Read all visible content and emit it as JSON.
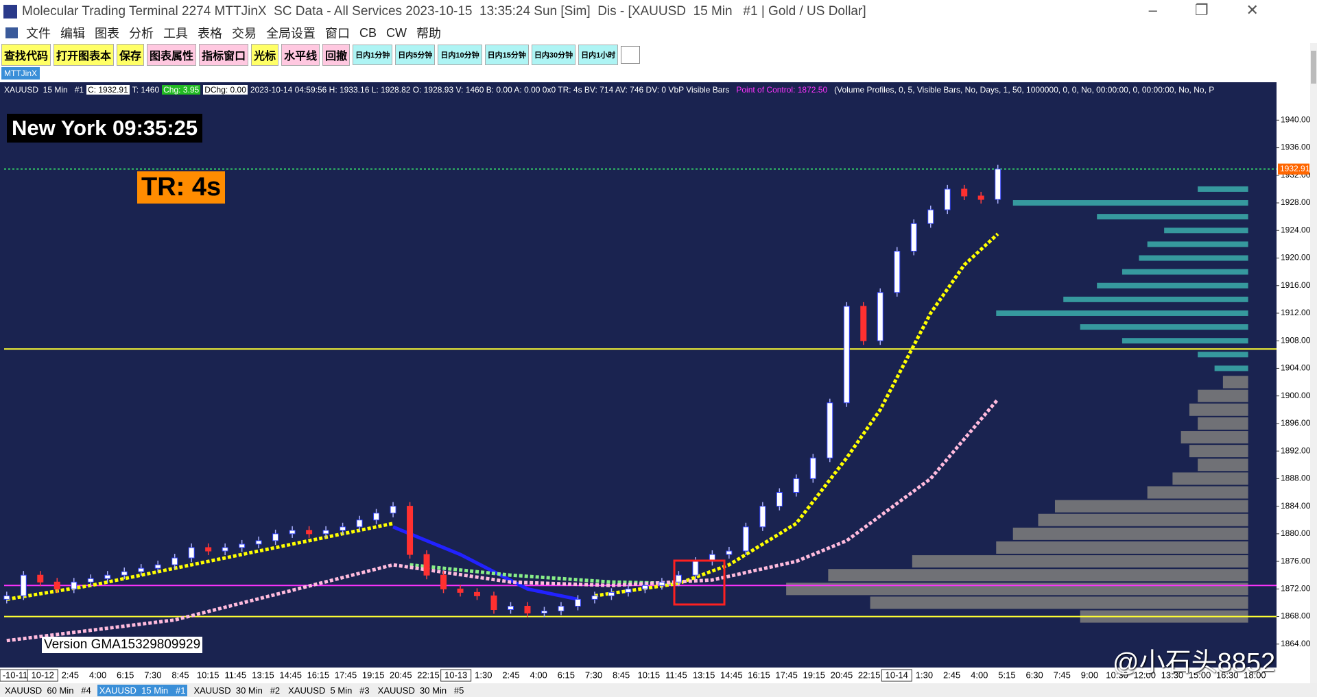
{
  "window": {
    "title": "Molecular Trading Terminal 2274 MTTJinX  SC Data - All Services 2023-10-15  13:35:24 Sun [Sim]  Dis - [XAUUSD  15 Min   #1 | Gold / US Dollar]"
  },
  "menu": [
    "文件",
    "编辑",
    "图表",
    "分析",
    "工具",
    "表格",
    "交易",
    "全局设置",
    "窗口",
    "CB",
    "CW",
    "帮助"
  ],
  "toolbar": [
    "查找代码",
    "打开图表本",
    "保存",
    "图表属性",
    "指标窗口",
    "光标",
    "水平线",
    "回撤",
    "日内1分钟",
    "日内5分钟",
    "日内10分钟",
    "日内15分钟",
    "日内30分钟",
    "日内1小时"
  ],
  "chartbook_tab": "MTTJinX",
  "info": {
    "symbol": "XAUUSD  15 Min   #1",
    "close": "C: 1932.91",
    "trades": "T: 1460",
    "change": "Chg: 3.95",
    "dchange": "DChg: 0.00",
    "details": "2023-10-14 04:59:56 H: 1933.16 L: 1928.82 O: 1928.93 V: 1460 B: 0.00 A: 0.00 0x0 TR: 4s BV: 714 AV: 746 DV: 0 VbP Visible Bars",
    "poc": "Point of Control: 1872.50",
    "study": "(Volume Profiles, 0, 5, Visible Bars, No, Days, 1, 50, 1000000, 0, 0, No, 00:00:00, 0, 00:00:00, No, No, P"
  },
  "overlays": {
    "clock": "New York 09:35:25",
    "timer": "TR: 4s",
    "version": "Version GMA15329809929"
  },
  "chart_data": {
    "type": "candlestick",
    "closes": [
      1871,
      1874,
      1873,
      1872,
      1873,
      1873.5,
      1874,
      1874.5,
      1875,
      1875.5,
      1876.5,
      1878,
      1877.5,
      1878,
      1878.5,
      1879,
      1880,
      1880.5,
      1880,
      1880.5,
      1881,
      1882,
      1883,
      1884,
      1877,
      1874,
      1872,
      1871.5,
      1871,
      1869,
      1869.5,
      1868.5,
      1868.8,
      1869.5,
      1870.5,
      1871,
      1871.5,
      1872,
      1872.5,
      1873,
      1874,
      1876,
      1877,
      1877.5,
      1881,
      1884,
      1886,
      1888,
      1891,
      1899,
      1913,
      1908,
      1915,
      1921,
      1925,
      1927,
      1930,
      1929,
      1928.5,
      1932.91
    ],
    "ylim": [
      1860.6,
      1945.5
    ],
    "yticks": [
      {
        "value": 1864,
        "label": "1864.00"
      },
      {
        "value": 1868,
        "label": "1868.00"
      },
      {
        "value": 1872,
        "label": "1872.00"
      },
      {
        "value": 1876,
        "label": "1876.00"
      },
      {
        "value": 1880,
        "label": "1880.00"
      },
      {
        "value": 1884,
        "label": "1884.00"
      },
      {
        "value": 1888,
        "label": "1888.00"
      },
      {
        "value": 1892,
        "label": "1892.00"
      },
      {
        "value": 1896,
        "label": "1896.00"
      },
      {
        "value": 1900,
        "label": "1900.00"
      },
      {
        "value": 1904,
        "label": "1904.00"
      },
      {
        "value": 1908,
        "label": "1908.00"
      },
      {
        "value": 1912,
        "label": "1912.00"
      },
      {
        "value": 1916,
        "label": "1916.00"
      },
      {
        "value": 1920,
        "label": "1920.00"
      },
      {
        "value": 1924,
        "label": "1924.00"
      },
      {
        "value": 1928,
        "label": "1928.00"
      },
      {
        "value": 1932,
        "label": "1932.00"
      },
      {
        "value": 1936,
        "label": "1936.00"
      },
      {
        "value": 1940,
        "label": "1940.00"
      }
    ],
    "last_price_label": {
      "value": 1932.91,
      "label": "1932.91"
    },
    "hlines": [
      {
        "value": 1906.8,
        "color": "#ffff33"
      },
      {
        "value": 1872.5,
        "color": "#ff33ff"
      },
      {
        "value": 1868,
        "color": "#ffff33"
      },
      {
        "value": 1932.91,
        "color": "#33cc66"
      }
    ],
    "indicators": [
      {
        "color": "#ffff00",
        "x": [
          0,
          5,
          15,
          23,
          29,
          35,
          40,
          43,
          47,
          50,
          52,
          55,
          57,
          59
        ],
        "values": [
          1870.5,
          1872.5,
          1877.5,
          1881.5,
          null,
          1871,
          1872.8,
          1875.5,
          1881.5,
          1891,
          1898,
          1912,
          1919,
          1923.5
        ]
      },
      {
        "color": "#2222ff",
        "x": [
          23,
          27,
          31,
          34
        ],
        "values": [
          1881,
          1877,
          1872,
          1870.5
        ]
      },
      {
        "color": "#88ee88",
        "x": [
          24,
          30,
          36,
          40
        ],
        "values": [
          1875.5,
          1874,
          1873,
          1872.8
        ]
      },
      {
        "color": "#ffbbdd",
        "x": [
          0,
          10,
          23,
          30,
          36,
          42,
          47,
          50,
          55,
          59
        ],
        "values": [
          1864.5,
          1867.5,
          1875.5,
          1873,
          1872.5,
          1873.3,
          1876,
          1879,
          1888,
          1899.5
        ]
      }
    ],
    "volume_profile": {
      "levels": [
        1868,
        1870,
        1872,
        1874,
        1876,
        1878,
        1880,
        1882,
        1884,
        1886,
        1888,
        1890,
        1892,
        1894,
        1896,
        1898,
        1900,
        1902,
        1904,
        1906,
        1908,
        1910,
        1912,
        1914,
        1916,
        1918,
        1920,
        1922,
        1924,
        1926,
        1928,
        1930
      ],
      "volumes": [
        200,
        450,
        550,
        500,
        400,
        300,
        280,
        250,
        230,
        120,
        90,
        60,
        70,
        80,
        60,
        70,
        60,
        30,
        40,
        60,
        150,
        200,
        300,
        220,
        180,
        150,
        130,
        120,
        100,
        180,
        280,
        60
      ],
      "colors": {
        "low": "#7a7a7a",
        "high": "#3aa6a6"
      }
    },
    "time_labels": [
      "-10-11",
      "10-12",
      "2:45",
      "4:00",
      "6:15",
      "7:30",
      "8:45",
      "10:15",
      "11:45",
      "13:15",
      "14:45",
      "16:15",
      "17:45",
      "19:15",
      "20:45",
      "22:15",
      "10-13",
      "1:30",
      "2:45",
      "4:00",
      "6:15",
      "7:30",
      "8:45",
      "10:15",
      "11:45",
      "13:15",
      "14:45",
      "16:15",
      "17:45",
      "19:15",
      "20:45",
      "22:15",
      "10-14",
      "1:30",
      "2:45",
      "4:00",
      "5:15",
      "6:30",
      "7:45",
      "9:00",
      "10:30",
      "12:00",
      "13:30",
      "15:00",
      "16:30",
      "18:00"
    ]
  },
  "tabs": [
    "XAUUSD  60 Min   #4",
    "XAUUSD  15 Min   #1",
    "XAUUSD  30 Min   #2",
    "XAUUSD  5 Min   #3",
    "XAUUSD  30 Min   #5"
  ],
  "watermark": "@小石头8852"
}
